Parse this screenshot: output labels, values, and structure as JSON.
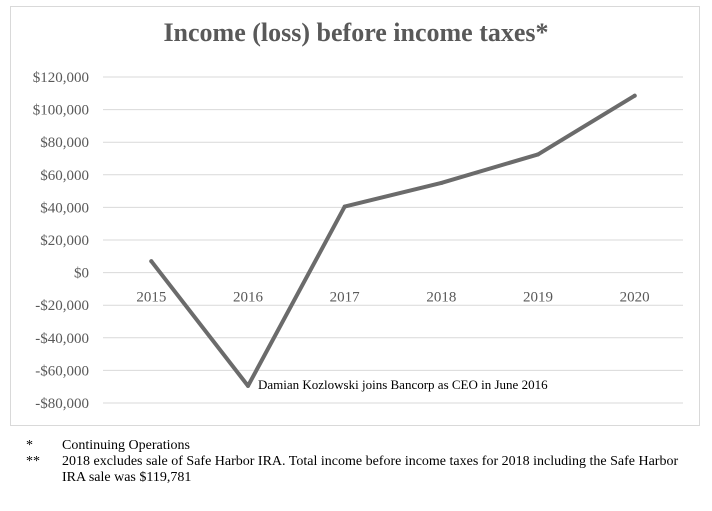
{
  "chart_data": {
    "type": "line",
    "title": "Income (loss) before income taxes*",
    "categories": [
      "2015",
      "2016",
      "2017",
      "2018",
      "2019",
      "2020"
    ],
    "series": [
      {
        "values": [
          7000,
          -69500,
          40500,
          55000,
          72500,
          108500
        ]
      }
    ],
    "ylim": [
      -80000,
      120000
    ],
    "yticks": [
      120000,
      100000,
      80000,
      60000,
      40000,
      20000,
      0,
      -20000,
      -40000,
      -60000,
      -80000
    ],
    "ytick_labels": [
      "$120,000",
      "$100,000",
      "$80,000",
      "$60,000",
      "$40,000",
      "$20,000",
      "$0",
      "-$20,000",
      "-$40,000",
      "-$60,000",
      "-$80,000"
    ],
    "xlabel": "",
    "ylabel": "",
    "grid": true,
    "line_color": "#6b6b6b",
    "annotations": [
      {
        "category": "2016",
        "text": "Damian Kozlowski joins Bancorp as CEO in June 2016"
      }
    ]
  },
  "footnotes": [
    {
      "mark": "*",
      "text": "Continuing Operations"
    },
    {
      "mark": "**",
      "text": "2018 excludes sale of Safe Harbor IRA.  Total income before income taxes for 2018 including the Safe Harbor IRA sale was $119,781"
    }
  ]
}
